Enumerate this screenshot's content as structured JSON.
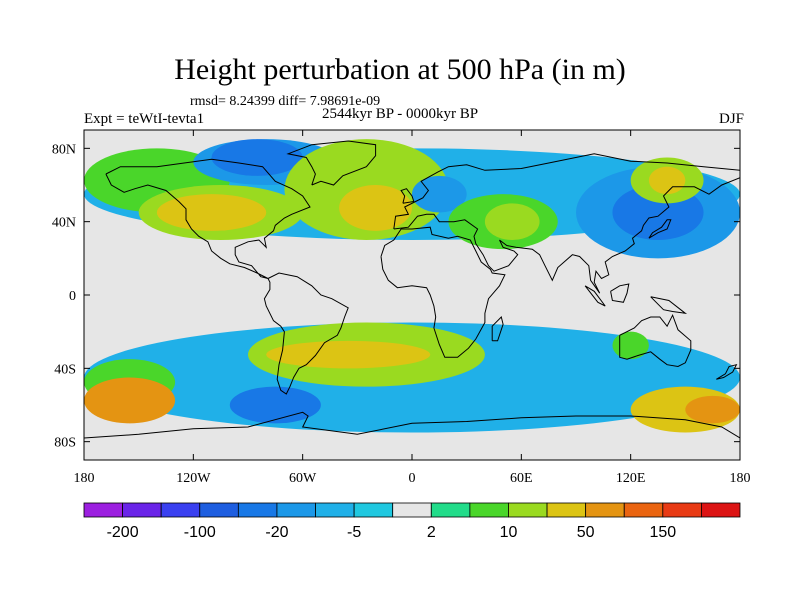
{
  "chart_data": {
    "type": "heatmap",
    "title": "Height perturbation at 500 hPa (in m)",
    "stats_text": "rmsd= 8.24399 diff= 7.98691e-09",
    "left_label": "Expt = teWtI-tevta1",
    "center_label": "2544kyr BP - 0000kyr BP",
    "right_label": "DJF",
    "x_ticks": [
      "180",
      "120W",
      "60W",
      "0",
      "60E",
      "120E",
      "180"
    ],
    "y_ticks": [
      "80N",
      "40N",
      "0",
      "40S",
      "80S"
    ],
    "xlim": [
      -180,
      180
    ],
    "ylim": [
      -90,
      90
    ],
    "colorbar": {
      "levels": [
        -200,
        -150,
        -100,
        -50,
        -20,
        -10,
        -5,
        -2,
        2,
        5,
        10,
        20,
        50,
        100,
        150,
        200
      ],
      "labels": [
        "-200",
        "-100",
        "-20",
        "-5",
        "2",
        "10",
        "50",
        "150"
      ],
      "colors": [
        "#9c1fe0",
        "#6a24e8",
        "#3a40f0",
        "#1e5ee0",
        "#1878e6",
        "#1c98e8",
        "#20b0e8",
        "#20c8e0",
        "#e6e6e6",
        "#22dc8a",
        "#4ad62a",
        "#9ada20",
        "#dcc414",
        "#e49412",
        "#ea6410",
        "#e83a14",
        "#dc1414"
      ]
    },
    "field_regions": [
      {
        "level": "-5",
        "lon": [
          -180,
          180
        ],
        "lat": [
          30,
          80
        ]
      },
      {
        "level": "5",
        "lon": [
          -180,
          -100
        ],
        "lat": [
          45,
          80
        ]
      },
      {
        "level": "10",
        "lon": [
          -150,
          -60
        ],
        "lat": [
          30,
          60
        ]
      },
      {
        "level": "20",
        "lon": [
          -140,
          -80
        ],
        "lat": [
          35,
          55
        ]
      },
      {
        "level": "-10",
        "lon": [
          -120,
          -40
        ],
        "lat": [
          60,
          85
        ]
      },
      {
        "level": "-20",
        "lon": [
          -110,
          -60
        ],
        "lat": [
          65,
          85
        ]
      },
      {
        "level": "10",
        "lon": [
          -70,
          20
        ],
        "lat": [
          30,
          85
        ]
      },
      {
        "level": "20",
        "lon": [
          -40,
          0
        ],
        "lat": [
          35,
          60
        ]
      },
      {
        "level": "-10",
        "lon": [
          0,
          30
        ],
        "lat": [
          45,
          65
        ]
      },
      {
        "level": "5",
        "lon": [
          20,
          80
        ],
        "lat": [
          25,
          55
        ]
      },
      {
        "level": "10",
        "lon": [
          40,
          70
        ],
        "lat": [
          30,
          50
        ]
      },
      {
        "level": "-10",
        "lon": [
          90,
          180
        ],
        "lat": [
          20,
          70
        ]
      },
      {
        "level": "-20",
        "lon": [
          110,
          160
        ],
        "lat": [
          30,
          60
        ]
      },
      {
        "level": "10",
        "lon": [
          120,
          160
        ],
        "lat": [
          50,
          75
        ]
      },
      {
        "level": "20",
        "lon": [
          130,
          150
        ],
        "lat": [
          55,
          70
        ]
      },
      {
        "level": "-5",
        "lon": [
          -180,
          180
        ],
        "lat": [
          -75,
          -15
        ]
      },
      {
        "level": "5",
        "lon": [
          -180,
          -130
        ],
        "lat": [
          -60,
          -35
        ]
      },
      {
        "level": "10",
        "lon": [
          -90,
          40
        ],
        "lat": [
          -50,
          -15
        ]
      },
      {
        "level": "20",
        "lon": [
          -80,
          10
        ],
        "lat": [
          -40,
          -25
        ]
      },
      {
        "level": "50",
        "lon": [
          -180,
          -130
        ],
        "lat": [
          -70,
          -45
        ]
      },
      {
        "level": "-20",
        "lon": [
          -100,
          -50
        ],
        "lat": [
          -70,
          -50
        ]
      },
      {
        "level": "20",
        "lon": [
          120,
          180
        ],
        "lat": [
          -75,
          -50
        ]
      },
      {
        "level": "50",
        "lon": [
          150,
          180
        ],
        "lat": [
          -70,
          -55
        ]
      },
      {
        "level": "5",
        "lon": [
          110,
          130
        ],
        "lat": [
          -35,
          -20
        ]
      }
    ]
  }
}
